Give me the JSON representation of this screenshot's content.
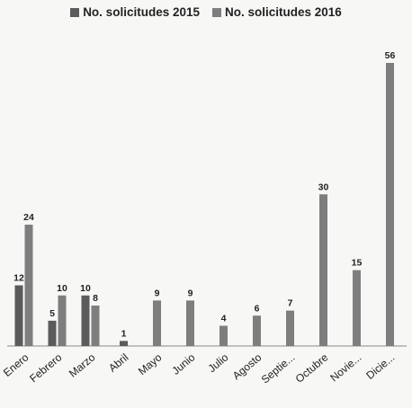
{
  "chart_data": {
    "type": "bar",
    "categories": [
      "Enero",
      "Febrero",
      "Marzo",
      "Abril",
      "Mayo",
      "Junio",
      "Julio",
      "Agosto",
      "Septie...",
      "Octubre",
      "Novie...",
      "Dicie..."
    ],
    "series": [
      {
        "name": "No. solicitudes 2015",
        "color": "#5b5b5b",
        "values": [
          12,
          5,
          10,
          1,
          null,
          null,
          null,
          null,
          null,
          null,
          null,
          null
        ]
      },
      {
        "name": "No. solicitudes 2016",
        "color": "#7e7e7e",
        "values": [
          24,
          10,
          8,
          null,
          9,
          9,
          4,
          6,
          7,
          30,
          15,
          56
        ]
      }
    ],
    "title": "",
    "xlabel": "",
    "ylabel": "",
    "ylim": [
      0,
      56
    ],
    "grid": false,
    "legend": "top"
  }
}
